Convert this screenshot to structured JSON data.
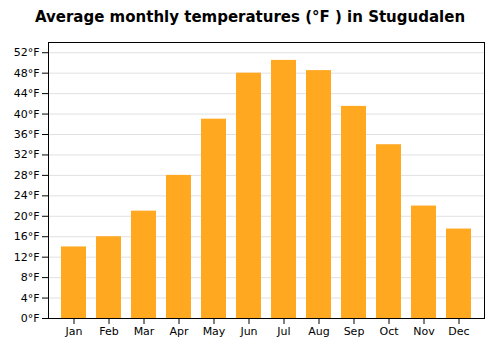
{
  "chart_data": {
    "type": "bar",
    "title": "Average monthly temperatures (°F ) in Stugudalen",
    "categories": [
      "Jan",
      "Feb",
      "Mar",
      "Apr",
      "May",
      "Jun",
      "Jul",
      "Aug",
      "Sep",
      "Oct",
      "Nov",
      "Dec"
    ],
    "values": [
      14,
      16,
      21,
      28,
      39,
      48,
      50.5,
      48.5,
      41.5,
      34,
      22,
      17.5
    ],
    "color": "#FFA820",
    "ylim": [
      0,
      54
    ],
    "yticks": [
      {
        "value": 0,
        "label": "0°F"
      },
      {
        "value": 4,
        "label": "4°F"
      },
      {
        "value": 8,
        "label": "8°F"
      },
      {
        "value": 12,
        "label": "12°F"
      },
      {
        "value": 16,
        "label": "16°F"
      },
      {
        "value": 20,
        "label": "20°F"
      },
      {
        "value": 24,
        "label": "24°F"
      },
      {
        "value": 28,
        "label": "28°F"
      },
      {
        "value": 32,
        "label": "32°F"
      },
      {
        "value": 36,
        "label": "36°F"
      },
      {
        "value": 40,
        "label": "40°F"
      },
      {
        "value": 44,
        "label": "44°F"
      },
      {
        "value": 48,
        "label": "48°F"
      },
      {
        "value": 52,
        "label": "52°F"
      }
    ],
    "grid": true
  }
}
